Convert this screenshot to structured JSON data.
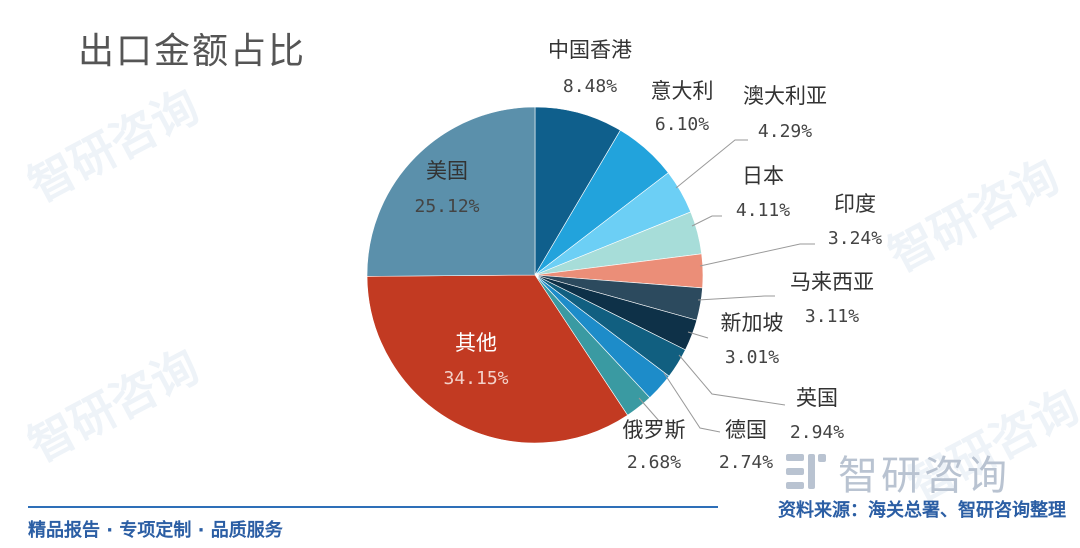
{
  "title": "出口金额占比",
  "watermark_text": "智研咨询",
  "brand": {
    "name": "智研咨询"
  },
  "footer": {
    "left_text": "精品报告 · 专项定制 · 品质服务",
    "source_text": "资料来源：海关总署、智研咨询整理"
  },
  "chart_data": {
    "type": "pie",
    "title": "出口金额占比",
    "start": "12 o'clock",
    "direction": "clockwise",
    "slices": [
      {
        "label": "中国香港",
        "value": 8.48,
        "display": "8.48%",
        "color": "#0f5f8c"
      },
      {
        "label": "意大利",
        "value": 6.1,
        "display": "6.10%",
        "color": "#22a3dc"
      },
      {
        "label": "澳大利亚",
        "value": 4.29,
        "display": "4.29%",
        "color": "#6ccff5"
      },
      {
        "label": "日本",
        "value": 4.11,
        "display": "4.11%",
        "color": "#a7ddd9"
      },
      {
        "label": "印度",
        "value": 3.24,
        "display": "3.24%",
        "color": "#eb8e78"
      },
      {
        "label": "马来西亚",
        "value": 3.11,
        "display": "3.11%",
        "color": "#2c4a5e"
      },
      {
        "label": "新加坡",
        "value": 3.01,
        "display": "3.01%",
        "color": "#0e3148"
      },
      {
        "label": "英国",
        "value": 2.94,
        "display": "2.94%",
        "color": "#115f80"
      },
      {
        "label": "德国",
        "value": 2.74,
        "display": "2.74%",
        "color": "#1d8cc9"
      },
      {
        "label": "俄罗斯",
        "value": 2.68,
        "display": "2.68%",
        "color": "#3a9aa2"
      },
      {
        "label": "其他",
        "value": 34.15,
        "display": "34.15%",
        "color": "#c23a22"
      },
      {
        "label": "美国",
        "value": 25.12,
        "display": "25.12%",
        "color": "#5b90ab"
      }
    ]
  }
}
